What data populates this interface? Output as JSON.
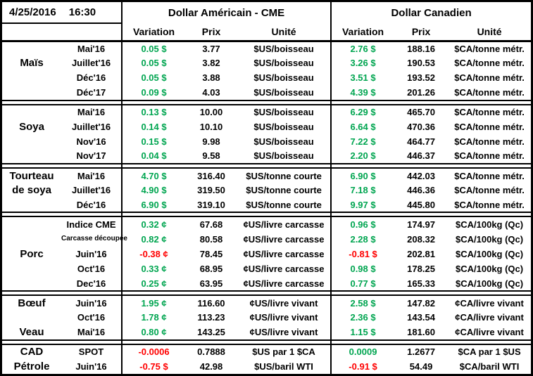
{
  "header": {
    "date": "4/25/2016",
    "time": "16:30",
    "us_group": "Dollar Américain - CME",
    "ca_group": "Dollar Canadien",
    "columns": {
      "variation": "Variation",
      "prix": "Prix",
      "unite": "Unité"
    }
  },
  "colors": {
    "positive": "#00a550",
    "negative": "#ff0000",
    "text": "#000000",
    "border": "#000000"
  },
  "blocks": [
    {
      "name": "mais",
      "rows": [
        {
          "cat": "",
          "month": "Mai'16",
          "us_var": "0.05 $",
          "us_prix": "3.77",
          "us_unit": "$US/boisseau",
          "ca_var": "2.76 $",
          "ca_prix": "188.16",
          "ca_unit": "$CA/tonne métr."
        },
        {
          "cat": "Maïs",
          "month": "Juillet'16",
          "us_var": "0.05 $",
          "us_prix": "3.82",
          "us_unit": "$US/boisseau",
          "ca_var": "3.26 $",
          "ca_prix": "190.53",
          "ca_unit": "$CA/tonne métr."
        },
        {
          "cat": "",
          "month": "Déc'16",
          "us_var": "0.05 $",
          "us_prix": "3.88",
          "us_unit": "$US/boisseau",
          "ca_var": "3.51 $",
          "ca_prix": "193.52",
          "ca_unit": "$CA/tonne métr."
        },
        {
          "cat": "",
          "month": "Déc'17",
          "us_var": "0.09 $",
          "us_prix": "4.03",
          "us_unit": "$US/boisseau",
          "ca_var": "4.39 $",
          "ca_prix": "201.26",
          "ca_unit": "$CA/tonne métr."
        }
      ]
    },
    {
      "name": "soya",
      "rows": [
        {
          "cat": "",
          "month": "Mai'16",
          "us_var": "0.13 $",
          "us_prix": "10.00",
          "us_unit": "$US/boisseau",
          "ca_var": "6.29 $",
          "ca_prix": "465.70",
          "ca_unit": "$CA/tonne métr."
        },
        {
          "cat": "Soya",
          "month": "Juillet'16",
          "us_var": "0.14 $",
          "us_prix": "10.10",
          "us_unit": "$US/boisseau",
          "ca_var": "6.64 $",
          "ca_prix": "470.36",
          "ca_unit": "$CA/tonne métr."
        },
        {
          "cat": "",
          "month": "Nov'16",
          "us_var": "0.15 $",
          "us_prix": "9.98",
          "us_unit": "$US/boisseau",
          "ca_var": "7.22 $",
          "ca_prix": "464.77",
          "ca_unit": "$CA/tonne métr."
        },
        {
          "cat": "",
          "month": "Nov'17",
          "us_var": "0.04 $",
          "us_prix": "9.58",
          "us_unit": "$US/boisseau",
          "ca_var": "2.20 $",
          "ca_prix": "446.37",
          "ca_unit": "$CA/tonne métr."
        }
      ]
    },
    {
      "name": "tourteau-de-soya",
      "rows": [
        {
          "cat": "Tourteau",
          "month": "Mai'16",
          "us_var": "4.70 $",
          "us_prix": "316.40",
          "us_unit": "$US/tonne courte",
          "ca_var": "6.90 $",
          "ca_prix": "442.03",
          "ca_unit": "$CA/tonne métr."
        },
        {
          "cat": "de soya",
          "month": "Juillet'16",
          "us_var": "4.90 $",
          "us_prix": "319.50",
          "us_unit": "$US/tonne courte",
          "ca_var": "7.18 $",
          "ca_prix": "446.36",
          "ca_unit": "$CA/tonne métr."
        },
        {
          "cat": "",
          "month": "Déc'16",
          "us_var": "6.90 $",
          "us_prix": "319.10",
          "us_unit": "$US/tonne courte",
          "ca_var": "9.97 $",
          "ca_prix": "445.80",
          "ca_unit": "$CA/tonne métr."
        }
      ]
    },
    {
      "name": "porc",
      "rows": [
        {
          "cat": "",
          "month": "Indice CME",
          "us_var": "0.32 ¢",
          "us_prix": "67.68",
          "us_unit": "¢US/livre carcasse",
          "ca_var": "0.96 $",
          "ca_prix": "174.97",
          "ca_unit": "$CA/100kg (Qc)"
        },
        {
          "cat": "",
          "month": "Carcasse découpée",
          "us_var": "0.82 ¢",
          "us_prix": "80.58",
          "us_unit": "¢US/livre carcasse",
          "ca_var": "2.28 $",
          "ca_prix": "208.32",
          "ca_unit": "$CA/100kg (Qc)"
        },
        {
          "cat": "Porc",
          "month": "Juin'16",
          "us_var": "-0.38 ¢",
          "us_prix": "78.45",
          "us_unit": "¢US/livre carcasse",
          "ca_var": "-0.81 $",
          "ca_prix": "202.81",
          "ca_unit": "$CA/100kg (Qc)"
        },
        {
          "cat": "",
          "month": "Oct'16",
          "us_var": "0.33 ¢",
          "us_prix": "68.95",
          "us_unit": "¢US/livre carcasse",
          "ca_var": "0.98 $",
          "ca_prix": "178.25",
          "ca_unit": "$CA/100kg (Qc)"
        },
        {
          "cat": "",
          "month": "Dec'16",
          "us_var": "0.25 ¢",
          "us_prix": "63.95",
          "us_unit": "¢US/livre carcasse",
          "ca_var": "0.77 $",
          "ca_prix": "165.33",
          "ca_unit": "$CA/100kg (Qc)"
        }
      ]
    },
    {
      "name": "boeuf-veau",
      "rows": [
        {
          "cat": "Bœuf",
          "month": "Juin'16",
          "us_var": "1.95 ¢",
          "us_prix": "116.60",
          "us_unit": "¢US/livre vivant",
          "ca_var": "2.58 $",
          "ca_prix": "147.82",
          "ca_unit": "¢CA/livre vivant"
        },
        {
          "cat": "",
          "month": "Oct'16",
          "us_var": "1.78 ¢",
          "us_prix": "113.23",
          "us_unit": "¢US/livre vivant",
          "ca_var": "2.36 $",
          "ca_prix": "143.54",
          "ca_unit": "¢CA/livre vivant"
        },
        {
          "cat": "Veau",
          "month": "Mai'16",
          "us_var": "0.80 ¢",
          "us_prix": "143.25",
          "us_unit": "¢US/livre vivant",
          "ca_var": "1.15 $",
          "ca_prix": "181.60",
          "ca_unit": "¢CA/livre vivant"
        }
      ]
    },
    {
      "name": "cad-petrole",
      "rows": [
        {
          "cat": "CAD",
          "month": "SPOT",
          "us_var": "-0.0006",
          "us_prix": "0.7888",
          "us_unit": "$US par 1 $CA",
          "ca_var": "0.0009",
          "ca_prix": "1.2677",
          "ca_unit": "$CA par 1 $US"
        },
        {
          "cat": "Pétrole",
          "month": "Juin'16",
          "us_var": "-0.75 $",
          "us_prix": "42.98",
          "us_unit": "$US/baril WTI",
          "ca_var": "-0.91 $",
          "ca_prix": "54.49",
          "ca_unit": "$CA/baril WTI"
        }
      ]
    }
  ]
}
